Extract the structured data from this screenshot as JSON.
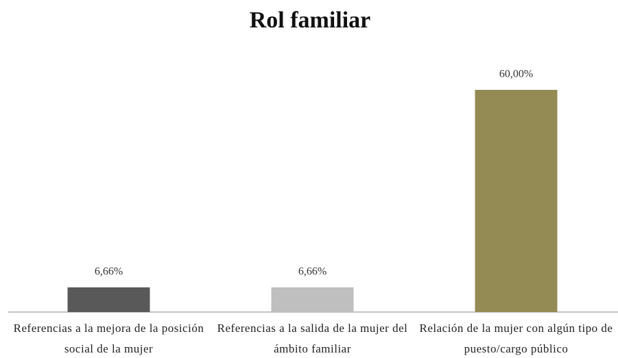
{
  "chart_data": {
    "type": "bar",
    "title": "Rol familiar",
    "categories": [
      "Referencias a la mejora de la posición social de la mujer",
      "Referencias a la salida de la mujer del ámbito familiar",
      "Relación de la mujer con algún tipo de puesto/cargo público"
    ],
    "values": [
      6.66,
      6.66,
      60.0
    ],
    "value_labels": [
      "6,66%",
      "6,66%",
      "60,00%"
    ],
    "colors": [
      "#595959",
      "#bfbfbf",
      "#948a54"
    ]
  }
}
